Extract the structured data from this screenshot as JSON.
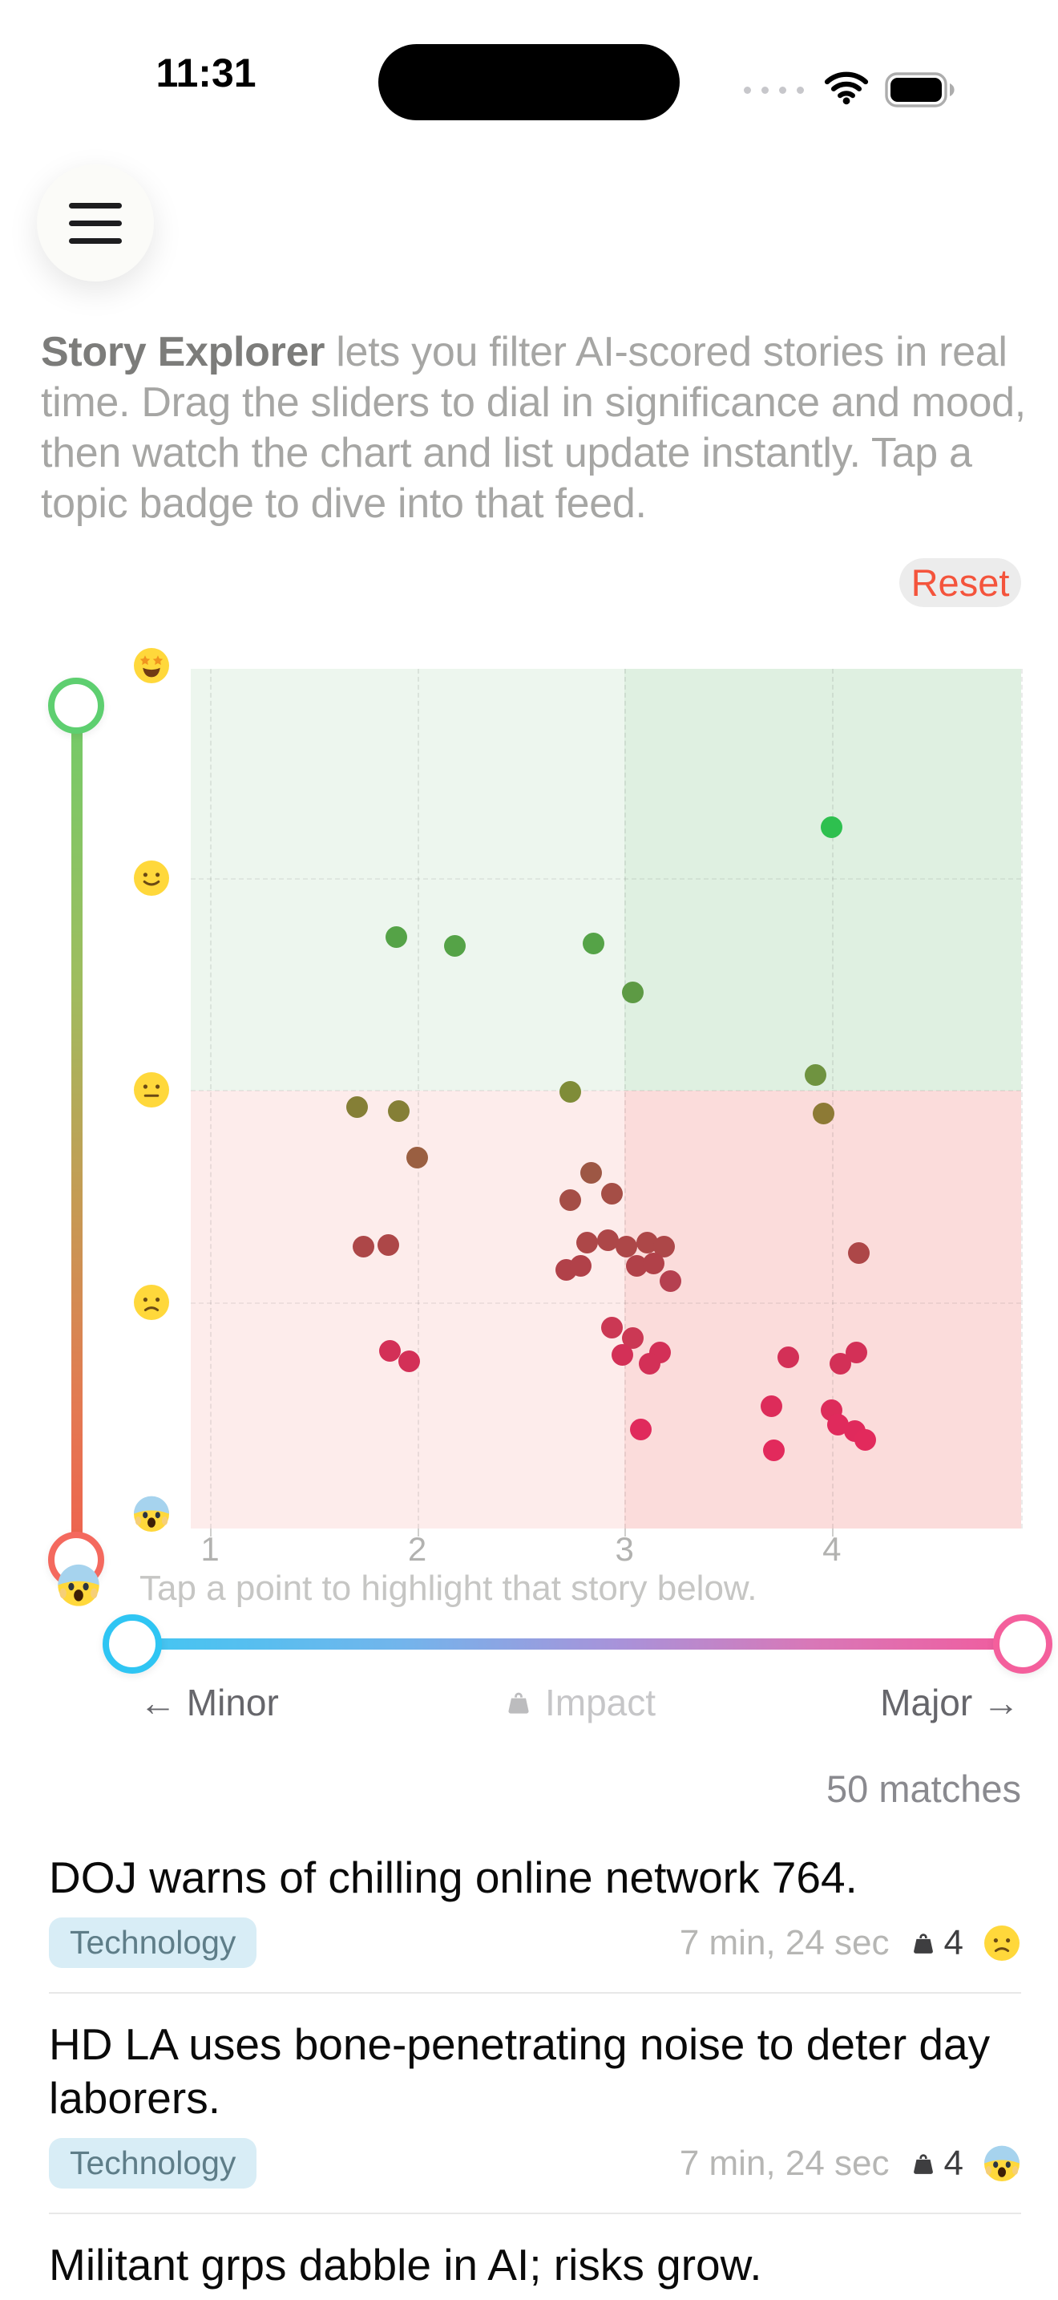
{
  "status_bar": {
    "time": "11:31"
  },
  "intro": {
    "lead": "Story Explorer",
    "body": " lets you filter AI-scored stories in real time. Drag the sliders to dial in significance and mood, then watch the chart and list update instantly. Tap a topic badge to dive into that feed."
  },
  "controls": {
    "reset_label": "Reset"
  },
  "chart_data": {
    "type": "scatter",
    "x_ticks": [
      "1",
      "2",
      "3",
      "4"
    ],
    "xlim": [
      0.9,
      4.95
    ],
    "ylim": [
      1,
      5
    ],
    "y_axis_moods": [
      "star-struck",
      "slight-smile",
      "neutral",
      "worried",
      "scream"
    ],
    "quadrant_split": {
      "x": 3,
      "y": 3
    },
    "quadrant_colors": {
      "top_left": "#edf6ee",
      "top_right": "#dff0e1",
      "bottom_left": "#fdeceb",
      "bottom_right": "#fbdcdb"
    },
    "caption": "Tap a point to highlight that story below.",
    "points": [
      {
        "x": 4.0,
        "y": 4.24,
        "color": "#2ec04f"
      },
      {
        "x": 1.9,
        "y": 3.72,
        "color": "#55a347"
      },
      {
        "x": 2.18,
        "y": 3.68,
        "color": "#55a347"
      },
      {
        "x": 2.85,
        "y": 3.69,
        "color": "#55a347"
      },
      {
        "x": 3.04,
        "y": 3.46,
        "color": "#5d9a44"
      },
      {
        "x": 2.74,
        "y": 2.99,
        "color": "#7f8c38"
      },
      {
        "x": 3.92,
        "y": 3.07,
        "color": "#6f9340"
      },
      {
        "x": 3.96,
        "y": 2.89,
        "color": "#8d7a35"
      },
      {
        "x": 1.71,
        "y": 2.92,
        "color": "#857f36"
      },
      {
        "x": 1.91,
        "y": 2.9,
        "color": "#857f36"
      },
      {
        "x": 2.0,
        "y": 2.68,
        "color": "#9a5f41"
      },
      {
        "x": 2.84,
        "y": 2.61,
        "color": "#9d5744"
      },
      {
        "x": 2.94,
        "y": 2.51,
        "color": "#a54e46"
      },
      {
        "x": 2.74,
        "y": 2.48,
        "color": "#a54e46"
      },
      {
        "x": 2.82,
        "y": 2.28,
        "color": "#ad4748"
      },
      {
        "x": 2.92,
        "y": 2.29,
        "color": "#ad4748"
      },
      {
        "x": 3.01,
        "y": 2.26,
        "color": "#ad4748"
      },
      {
        "x": 3.11,
        "y": 2.28,
        "color": "#ad4748"
      },
      {
        "x": 3.19,
        "y": 2.26,
        "color": "#ad4748"
      },
      {
        "x": 1.74,
        "y": 2.26,
        "color": "#ad4748"
      },
      {
        "x": 1.86,
        "y": 2.27,
        "color": "#ad4748"
      },
      {
        "x": 2.72,
        "y": 2.15,
        "color": "#b14149"
      },
      {
        "x": 2.79,
        "y": 2.17,
        "color": "#b14149"
      },
      {
        "x": 3.06,
        "y": 2.17,
        "color": "#b14149"
      },
      {
        "x": 3.14,
        "y": 2.18,
        "color": "#b14149"
      },
      {
        "x": 3.22,
        "y": 2.1,
        "color": "#b54050"
      },
      {
        "x": 4.13,
        "y": 2.23,
        "color": "#ad4748"
      },
      {
        "x": 2.94,
        "y": 1.88,
        "color": "#cb3854"
      },
      {
        "x": 3.04,
        "y": 1.83,
        "color": "#cb3854"
      },
      {
        "x": 2.99,
        "y": 1.75,
        "color": "#d33057"
      },
      {
        "x": 1.87,
        "y": 1.77,
        "color": "#d33057"
      },
      {
        "x": 1.96,
        "y": 1.72,
        "color": "#d33057"
      },
      {
        "x": 3.17,
        "y": 1.76,
        "color": "#d33057"
      },
      {
        "x": 3.12,
        "y": 1.71,
        "color": "#d33057"
      },
      {
        "x": 3.79,
        "y": 1.74,
        "color": "#d33057"
      },
      {
        "x": 4.04,
        "y": 1.71,
        "color": "#d33057"
      },
      {
        "x": 4.12,
        "y": 1.76,
        "color": "#d33057"
      },
      {
        "x": 3.71,
        "y": 1.51,
        "color": "#dd2c5a"
      },
      {
        "x": 4.0,
        "y": 1.49,
        "color": "#dd2c5a"
      },
      {
        "x": 4.03,
        "y": 1.42,
        "color": "#e02a5c"
      },
      {
        "x": 3.08,
        "y": 1.4,
        "color": "#e02a5c"
      },
      {
        "x": 3.72,
        "y": 1.3,
        "color": "#e22a5c"
      },
      {
        "x": 4.11,
        "y": 1.39,
        "color": "#e02a5c"
      },
      {
        "x": 4.16,
        "y": 1.35,
        "color": "#e22a5c"
      }
    ]
  },
  "mood_slider": {
    "top_color": "#5ecf70",
    "bottom_color": "#f4695e",
    "end_mood": "scream"
  },
  "impact_slider": {
    "min_label": "← Minor",
    "mid_label": "Impact",
    "max_label": "Major →",
    "left_color": "#2fc5f3",
    "right_color": "#f45f9c"
  },
  "results": {
    "match_count": "50 matches"
  },
  "stories": [
    {
      "title": "DOJ warns of chilling online network 764.",
      "topic": "Technology",
      "time": "7 min, 24 sec",
      "weight": "4",
      "mood": "worried"
    },
    {
      "title": "HD LA uses bone-penetrating noise to deter day laborers.",
      "topic": "Technology",
      "time": "7 min, 24 sec",
      "weight": "4",
      "mood": "scream"
    },
    {
      "title": "Militant grps dabble in AI; risks grow."
    }
  ]
}
